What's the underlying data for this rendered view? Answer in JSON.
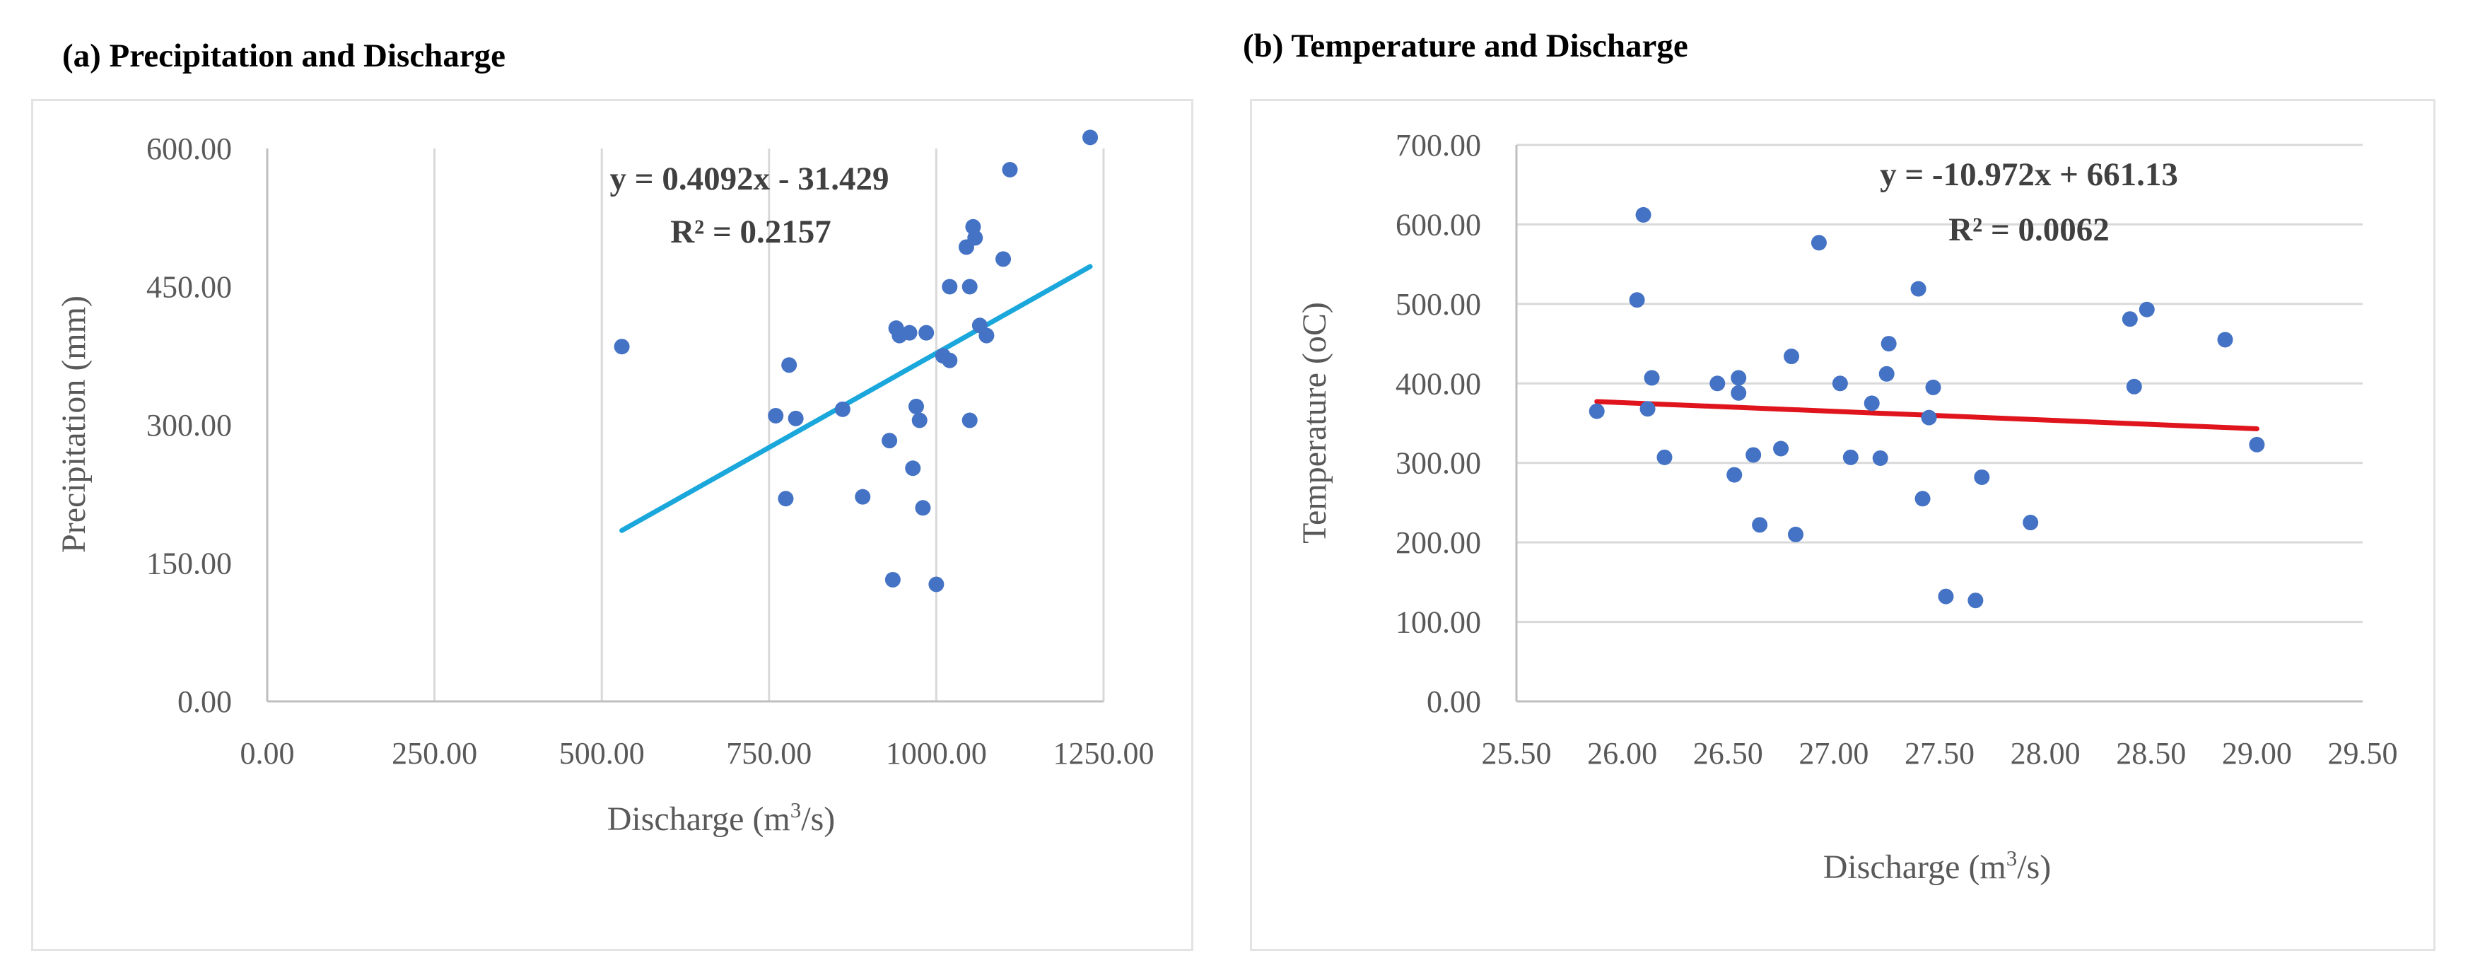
{
  "charts": [
    {
      "panel_title": "(a) Precipitation and Discharge",
      "equation": "y = 0.4092x - 31.429",
      "r_squared": "R² = 0.2157",
      "trendline_color": "#1aa7db",
      "marker_color": "#4472c4"
    },
    {
      "panel_title": "(b) Temperature and Discharge",
      "equation": "y = -10.972x + 661.13",
      "r_squared": "R² = 0.0062",
      "trendline_color": "#e0141c",
      "marker_color": "#4472c4"
    }
  ],
  "chart_data": [
    {
      "type": "scatter",
      "title": "(a) Precipitation and Discharge",
      "xlabel": "Discharge (m³/s)",
      "xlabel_parts": [
        "Discharge (m",
        "3",
        "/s)"
      ],
      "ylabel": "Precipitation (mm)",
      "xlim": [
        0,
        1250
      ],
      "ylim": [
        0,
        600
      ],
      "x_ticks": [
        0,
        250,
        500,
        750,
        1000,
        1250
      ],
      "x_tick_labels": [
        "0.00",
        "250.00",
        "500.00",
        "750.00",
        "1000.00",
        "1250.00"
      ],
      "y_ticks": [
        0,
        150,
        300,
        450,
        600
      ],
      "y_tick_labels": [
        "0.00",
        "150.00",
        "300.00",
        "450.00",
        "600.00"
      ],
      "grid": "vertical",
      "legend": "none",
      "trendline": {
        "slope": 0.4092,
        "intercept": -31.429,
        "x_range": [
          530,
          1230
        ]
      },
      "points": [
        [
          530,
          385
        ],
        [
          760,
          310
        ],
        [
          775,
          220
        ],
        [
          780,
          365
        ],
        [
          790,
          307
        ],
        [
          860,
          317
        ],
        [
          890,
          222
        ],
        [
          930,
          283
        ],
        [
          935,
          132
        ],
        [
          940,
          405
        ],
        [
          945,
          397
        ],
        [
          960,
          400
        ],
        [
          965,
          253
        ],
        [
          970,
          320
        ],
        [
          975,
          305
        ],
        [
          980,
          210
        ],
        [
          985,
          400
        ],
        [
          1000,
          127
        ],
        [
          1010,
          375
        ],
        [
          1020,
          370
        ],
        [
          1020,
          450
        ],
        [
          1045,
          493
        ],
        [
          1050,
          450
        ],
        [
          1050,
          305
        ],
        [
          1055,
          515
        ],
        [
          1058,
          503
        ],
        [
          1065,
          408
        ],
        [
          1075,
          397
        ],
        [
          1100,
          480
        ],
        [
          1110,
          577
        ],
        [
          1230,
          612
        ]
      ]
    },
    {
      "type": "scatter",
      "title": "(b) Temperature and Discharge",
      "xlabel": "Discharge (m³/s)",
      "xlabel_parts": [
        "Discharge (m",
        "3",
        "/s)"
      ],
      "ylabel": "Temperature (oC)",
      "xlim": [
        25.5,
        29.5
      ],
      "ylim": [
        0,
        700
      ],
      "x_ticks": [
        25.5,
        26,
        26.5,
        27,
        27.5,
        28,
        28.5,
        29,
        29.5
      ],
      "x_tick_labels": [
        "25.50",
        "26.00",
        "26.50",
        "27.00",
        "27.50",
        "28.00",
        "28.50",
        "29.00",
        "29.50"
      ],
      "y_ticks": [
        0,
        100,
        200,
        300,
        400,
        500,
        600,
        700
      ],
      "y_tick_labels": [
        "0.00",
        "100.00",
        "200.00",
        "300.00",
        "400.00",
        "500.00",
        "600.00",
        "700.00"
      ],
      "grid": "horizontal",
      "legend": "none",
      "trendline": {
        "slope": -10.972,
        "intercept": 661.13,
        "x_range": [
          25.88,
          29.0
        ]
      },
      "points": [
        [
          25.88,
          365
        ],
        [
          26.07,
          505
        ],
        [
          26.1,
          612
        ],
        [
          26.12,
          368
        ],
        [
          26.14,
          407
        ],
        [
          26.2,
          307
        ],
        [
          26.45,
          400
        ],
        [
          26.53,
          285
        ],
        [
          26.55,
          407
        ],
        [
          26.55,
          388
        ],
        [
          26.62,
          310
        ],
        [
          26.65,
          222
        ],
        [
          26.75,
          318
        ],
        [
          26.8,
          434
        ],
        [
          26.82,
          210
        ],
        [
          26.93,
          577
        ],
        [
          27.03,
          400
        ],
        [
          27.08,
          307
        ],
        [
          27.18,
          375
        ],
        [
          27.22,
          306
        ],
        [
          27.25,
          412
        ],
        [
          27.26,
          450
        ],
        [
          27.4,
          519
        ],
        [
          27.42,
          255
        ],
        [
          27.45,
          357
        ],
        [
          27.47,
          395
        ],
        [
          27.53,
          132
        ],
        [
          27.67,
          127
        ],
        [
          27.7,
          282
        ],
        [
          27.93,
          225
        ],
        [
          28.4,
          481
        ],
        [
          28.42,
          396
        ],
        [
          28.48,
          493
        ],
        [
          28.85,
          455
        ],
        [
          29.0,
          323
        ]
      ]
    }
  ]
}
